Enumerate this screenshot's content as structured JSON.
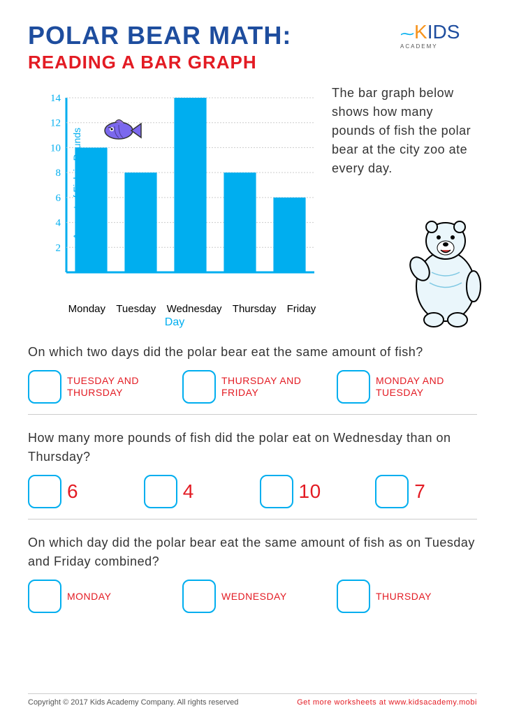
{
  "title_main": "POLAR BEAR MATH:",
  "title_sub": "READING A BAR GRAPH",
  "logo": {
    "text": "KIDS",
    "sub": "ACADEMY"
  },
  "description": "The bar graph below shows how many pounds of fish the polar bear at the city zoo ate every day.",
  "chart": {
    "type": "bar",
    "categories": [
      "Monday",
      "Tuesday",
      "Wednesday",
      "Thursday",
      "Friday"
    ],
    "values": [
      10,
      8,
      14,
      8,
      6
    ],
    "bar_color": "#00aeef",
    "axis_color": "#00aeef",
    "grid_color": "#cccccc",
    "background_color": "#ffffff",
    "ylabel": "Amount of Fish in Pounds",
    "xlabel": "Day",
    "ylim": [
      0,
      14
    ],
    "yticks": [
      2,
      4,
      6,
      8,
      10,
      12,
      14
    ],
    "bar_width": 0.65,
    "label_fontsize": 14,
    "cat_fontsize": 15,
    "cat_color": "#000000"
  },
  "questions": [
    {
      "text": "On which two days did the polar bear eat the same amount of fish?",
      "options": [
        "TUESDAY AND THURSDAY",
        "THURSDAY AND FRIDAY",
        "MONDAY AND TUESDAY"
      ],
      "style": "text"
    },
    {
      "text": "How many more pounds of fish did the polar eat on Wednesday than on Thursday?",
      "options": [
        "6",
        "4",
        "10",
        "7"
      ],
      "style": "number"
    },
    {
      "text": "On which day did the polar bear eat the same amount of fish as on Tuesday and Friday combined?",
      "options": [
        "MONDAY",
        "WEDNESDAY",
        "THURSDAY"
      ],
      "style": "text"
    }
  ],
  "footer_left": "Copyright © 2017 Kids Academy Company. All rights reserved",
  "footer_right": "Get more worksheets at www.kidsacademy.mobi"
}
